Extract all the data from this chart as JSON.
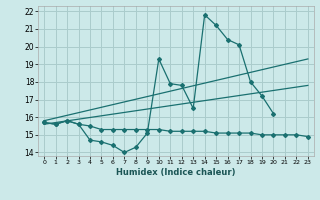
{
  "xlabel": "Humidex (Indice chaleur)",
  "background_color": "#cce9e9",
  "grid_color": "#aacccc",
  "line_color": "#1a7070",
  "xlim": [
    -0.5,
    23.5
  ],
  "ylim": [
    13.8,
    22.3
  ],
  "xticks": [
    0,
    1,
    2,
    3,
    4,
    5,
    6,
    7,
    8,
    9,
    10,
    11,
    12,
    13,
    14,
    15,
    16,
    17,
    18,
    19,
    20,
    21,
    22,
    23
  ],
  "yticks": [
    14,
    15,
    16,
    17,
    18,
    19,
    20,
    21,
    22
  ],
  "series1_x": [
    0,
    1,
    2,
    3,
    4,
    5,
    6,
    7,
    8,
    9,
    10,
    11,
    12,
    13,
    14,
    15,
    16,
    17,
    18,
    19,
    20
  ],
  "series1_y": [
    15.7,
    15.6,
    15.8,
    15.6,
    14.7,
    14.6,
    14.4,
    14.0,
    14.3,
    15.1,
    19.3,
    17.9,
    17.8,
    16.5,
    21.8,
    21.2,
    20.4,
    20.1,
    18.0,
    17.2,
    16.2
  ],
  "series2_x": [
    0,
    1,
    2,
    3,
    4,
    5,
    6,
    7,
    8,
    9,
    10,
    11,
    12,
    13,
    14,
    15,
    16,
    17,
    18,
    19,
    20,
    21,
    22,
    23
  ],
  "series2_y": [
    15.7,
    15.6,
    15.8,
    15.6,
    15.5,
    15.3,
    15.3,
    15.3,
    15.3,
    15.3,
    15.3,
    15.2,
    15.2,
    15.2,
    15.2,
    15.1,
    15.1,
    15.1,
    15.1,
    15.0,
    15.0,
    15.0,
    15.0,
    14.9
  ],
  "series3_x": [
    0,
    23
  ],
  "series3_y": [
    15.8,
    19.3
  ],
  "series4_x": [
    0,
    23
  ],
  "series4_y": [
    15.6,
    17.8
  ]
}
